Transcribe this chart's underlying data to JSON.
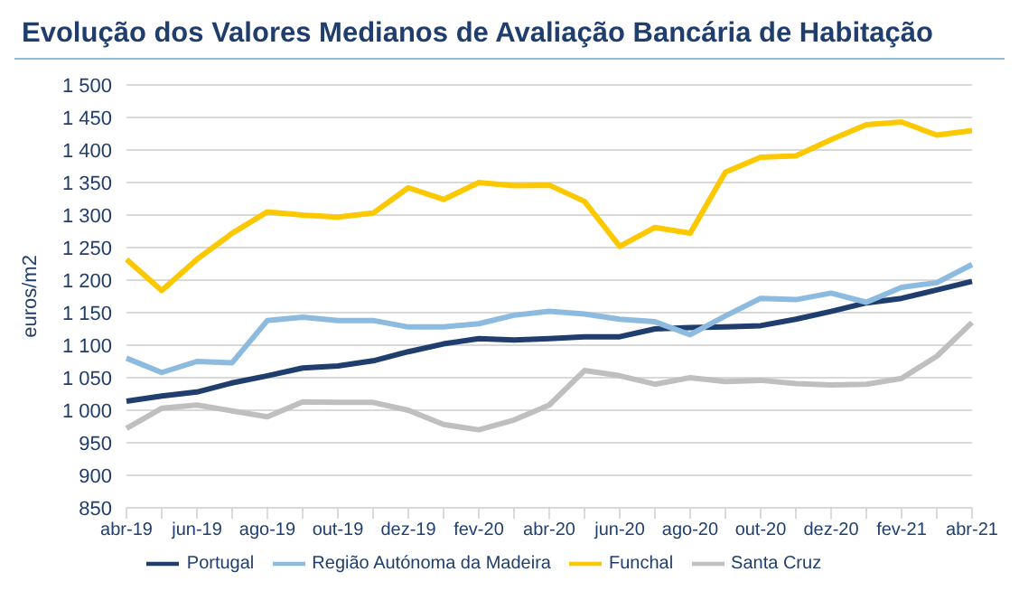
{
  "chart_data": {
    "type": "line",
    "title": "Evolução dos Valores Medianos de Avaliação Bancária de Habitação",
    "ylabel": "euros/m2",
    "categories": [
      "abr-19",
      null,
      "jun-19",
      null,
      "ago-19",
      null,
      "out-19",
      null,
      "dez-19",
      null,
      "fev-20",
      null,
      "abr-20",
      null,
      "jun-20",
      null,
      "ago-20",
      null,
      "out-20",
      null,
      "dez-20",
      null,
      "fev-21",
      null,
      "abr-21"
    ],
    "series": [
      {
        "name": "Portugal",
        "color": "#1f3e6e",
        "values": [
          1014,
          1022,
          1028,
          1042,
          1053,
          1065,
          1068,
          1076,
          1090,
          1102,
          1110,
          1108,
          1110,
          1113,
          1113,
          1125,
          1127,
          1128,
          1130,
          1140,
          1152,
          1165,
          1172,
          1185,
          1198
        ]
      },
      {
        "name": "Região Autónoma da Madeira",
        "color": "#8dbbe0",
        "values": [
          1080,
          1058,
          1075,
          1073,
          1138,
          1143,
          1138,
          1138,
          1128,
          1128,
          1133,
          1146,
          1152,
          1148,
          1140,
          1136,
          1116,
          1145,
          1172,
          1170,
          1180,
          1166,
          1189,
          1196,
          1224
        ]
      },
      {
        "name": "Funchal",
        "color": "#fcc800",
        "values": [
          1232,
          1184,
          1232,
          1272,
          1305,
          1300,
          1297,
          1303,
          1342,
          1324,
          1350,
          1345,
          1346,
          1321,
          1252,
          1281,
          1272,
          1366,
          1389,
          1391,
          1416,
          1439,
          1443,
          1423,
          1430
        ]
      },
      {
        "name": "Santa Cruz",
        "color": "#bfbfbf",
        "values": [
          972,
          1003,
          1008,
          999,
          990,
          1013,
          1012,
          1012,
          1000,
          978,
          970,
          985,
          1008,
          1061,
          1053,
          1040,
          1050,
          1044,
          1046,
          1041,
          1039,
          1040,
          1049,
          1083,
          1135
        ]
      }
    ],
    "ylim": [
      850,
      1500
    ],
    "yticks": [
      {
        "value": 850,
        "label": "850"
      },
      {
        "value": 900,
        "label": "900"
      },
      {
        "value": 950,
        "label": "950"
      },
      {
        "value": 1000,
        "label": "1 000"
      },
      {
        "value": 1050,
        "label": "1 050"
      },
      {
        "value": 1100,
        "label": "1 100"
      },
      {
        "value": 1150,
        "label": "1 150"
      },
      {
        "value": 1200,
        "label": "1 200"
      },
      {
        "value": 1250,
        "label": "1 250"
      },
      {
        "value": 1300,
        "label": "1 300"
      },
      {
        "value": 1350,
        "label": "1 350"
      },
      {
        "value": 1400,
        "label": "1 400"
      },
      {
        "value": 1450,
        "label": "1 450"
      },
      {
        "value": 1500,
        "label": "1 500"
      }
    ],
    "grid": "y",
    "legend": "bottom",
    "marker": "none",
    "line_style": "solid"
  }
}
